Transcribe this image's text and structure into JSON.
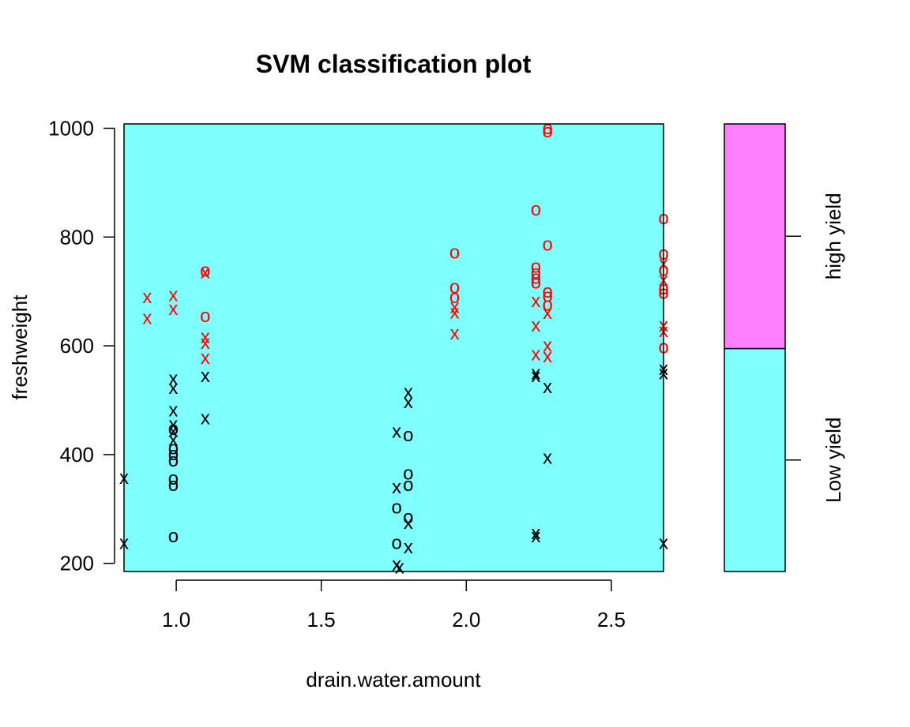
{
  "chart_data": {
    "type": "scatter",
    "title": "SVM classification plot",
    "xlabel": "drain.water.amount",
    "ylabel": "freshweight",
    "xlim": [
      0.82,
      2.68
    ],
    "ylim": [
      185,
      1008
    ],
    "xticks": [
      {
        "value": 1.0,
        "label": "1.0"
      },
      {
        "value": 1.5,
        "label": "1.5"
      },
      {
        "value": 2.0,
        "label": "2.0"
      },
      {
        "value": 2.5,
        "label": "2.5"
      }
    ],
    "yticks": [
      {
        "value": 200,
        "label": "200"
      },
      {
        "value": 400,
        "label": "400"
      },
      {
        "value": 600,
        "label": "600"
      },
      {
        "value": 800,
        "label": "800"
      },
      {
        "value": 1000,
        "label": "1000"
      }
    ],
    "classes": [
      {
        "name": "Low yield",
        "color": "#80FFFF",
        "range": [
          185,
          595
        ]
      },
      {
        "name": "high yield",
        "color": "#FF80FF",
        "range": [
          595,
          1008
        ]
      }
    ],
    "decision_region_color": "#80FFFF",
    "legend_placement": "right",
    "point_colors": {
      "high": "#FF0000",
      "low": "#000000"
    },
    "points": [
      {
        "x": 0.82,
        "y": 358,
        "m": "x",
        "c": "low"
      },
      {
        "x": 0.82,
        "y": 238,
        "m": "x",
        "c": "low"
      },
      {
        "x": 0.99,
        "y": 540,
        "m": "x",
        "c": "low"
      },
      {
        "x": 0.99,
        "y": 523,
        "m": "x",
        "c": "low"
      },
      {
        "x": 0.99,
        "y": 482,
        "m": "x",
        "c": "low"
      },
      {
        "x": 0.99,
        "y": 456,
        "m": "x",
        "c": "low"
      },
      {
        "x": 0.99,
        "y": 448,
        "m": "o",
        "c": "low"
      },
      {
        "x": 0.99,
        "y": 444,
        "m": "x",
        "c": "low"
      },
      {
        "x": 0.99,
        "y": 428,
        "m": "x",
        "c": "low"
      },
      {
        "x": 0.99,
        "y": 412,
        "m": "o",
        "c": "low"
      },
      {
        "x": 0.99,
        "y": 401,
        "m": "o",
        "c": "low"
      },
      {
        "x": 0.99,
        "y": 390,
        "m": "o",
        "c": "low"
      },
      {
        "x": 0.99,
        "y": 356,
        "m": "o",
        "c": "low"
      },
      {
        "x": 0.99,
        "y": 345,
        "m": "o",
        "c": "low"
      },
      {
        "x": 0.99,
        "y": 250,
        "m": "o",
        "c": "low"
      },
      {
        "x": 1.1,
        "y": 545,
        "m": "x",
        "c": "low"
      },
      {
        "x": 1.1,
        "y": 467,
        "m": "x",
        "c": "low"
      },
      {
        "x": 1.76,
        "y": 443,
        "m": "x",
        "c": "low"
      },
      {
        "x": 1.76,
        "y": 340,
        "m": "x",
        "c": "low"
      },
      {
        "x": 1.76,
        "y": 303,
        "m": "o",
        "c": "low"
      },
      {
        "x": 1.76,
        "y": 238,
        "m": "o",
        "c": "low"
      },
      {
        "x": 1.76,
        "y": 198,
        "m": "x",
        "c": "low"
      },
      {
        "x": 1.77,
        "y": 193,
        "m": "x",
        "c": "low"
      },
      {
        "x": 1.8,
        "y": 515,
        "m": "x",
        "c": "low"
      },
      {
        "x": 1.8,
        "y": 497,
        "m": "x",
        "c": "low"
      },
      {
        "x": 1.8,
        "y": 436,
        "m": "o",
        "c": "low"
      },
      {
        "x": 1.8,
        "y": 366,
        "m": "o",
        "c": "low"
      },
      {
        "x": 1.8,
        "y": 345,
        "m": "o",
        "c": "low"
      },
      {
        "x": 1.8,
        "y": 285,
        "m": "o",
        "c": "low"
      },
      {
        "x": 1.8,
        "y": 275,
        "m": "x",
        "c": "low"
      },
      {
        "x": 1.8,
        "y": 230,
        "m": "x",
        "c": "low"
      },
      {
        "x": 2.24,
        "y": 550,
        "m": "x",
        "c": "low"
      },
      {
        "x": 2.24,
        "y": 545,
        "m": "x",
        "c": "low"
      },
      {
        "x": 2.24,
        "y": 256,
        "m": "x",
        "c": "low"
      },
      {
        "x": 2.24,
        "y": 250,
        "m": "x",
        "c": "low"
      },
      {
        "x": 2.28,
        "y": 525,
        "m": "x",
        "c": "low"
      },
      {
        "x": 2.28,
        "y": 395,
        "m": "x",
        "c": "low"
      },
      {
        "x": 2.68,
        "y": 558,
        "m": "x",
        "c": "low"
      },
      {
        "x": 2.68,
        "y": 550,
        "m": "x",
        "c": "low"
      },
      {
        "x": 2.68,
        "y": 238,
        "m": "x",
        "c": "low"
      },
      {
        "x": 0.9,
        "y": 690,
        "m": "x",
        "c": "high"
      },
      {
        "x": 0.9,
        "y": 652,
        "m": "x",
        "c": "high"
      },
      {
        "x": 0.99,
        "y": 694,
        "m": "x",
        "c": "high"
      },
      {
        "x": 0.99,
        "y": 668,
        "m": "x",
        "c": "high"
      },
      {
        "x": 1.1,
        "y": 739,
        "m": "o",
        "c": "high"
      },
      {
        "x": 1.1,
        "y": 736,
        "m": "x",
        "c": "high"
      },
      {
        "x": 1.1,
        "y": 655,
        "m": "o",
        "c": "high"
      },
      {
        "x": 1.1,
        "y": 617,
        "m": "x",
        "c": "high"
      },
      {
        "x": 1.1,
        "y": 606,
        "m": "x",
        "c": "high"
      },
      {
        "x": 1.1,
        "y": 578,
        "m": "x",
        "c": "high"
      },
      {
        "x": 1.96,
        "y": 772,
        "m": "o",
        "c": "high"
      },
      {
        "x": 1.96,
        "y": 708,
        "m": "o",
        "c": "high"
      },
      {
        "x": 1.96,
        "y": 690,
        "m": "o",
        "c": "high"
      },
      {
        "x": 1.96,
        "y": 672,
        "m": "x",
        "c": "high"
      },
      {
        "x": 1.96,
        "y": 662,
        "m": "x",
        "c": "high"
      },
      {
        "x": 1.96,
        "y": 623,
        "m": "x",
        "c": "high"
      },
      {
        "x": 2.24,
        "y": 851,
        "m": "o",
        "c": "high"
      },
      {
        "x": 2.24,
        "y": 746,
        "m": "o",
        "c": "high"
      },
      {
        "x": 2.24,
        "y": 735,
        "m": "o",
        "c": "high"
      },
      {
        "x": 2.24,
        "y": 726,
        "m": "o",
        "c": "high"
      },
      {
        "x": 2.24,
        "y": 717,
        "m": "o",
        "c": "high"
      },
      {
        "x": 2.24,
        "y": 683,
        "m": "x",
        "c": "high"
      },
      {
        "x": 2.24,
        "y": 638,
        "m": "x",
        "c": "high"
      },
      {
        "x": 2.24,
        "y": 585,
        "m": "x",
        "c": "high"
      },
      {
        "x": 2.28,
        "y": 1001,
        "m": "o",
        "c": "high"
      },
      {
        "x": 2.28,
        "y": 995,
        "m": "o",
        "c": "high"
      },
      {
        "x": 2.28,
        "y": 787,
        "m": "o",
        "c": "high"
      },
      {
        "x": 2.28,
        "y": 700,
        "m": "o",
        "c": "high"
      },
      {
        "x": 2.28,
        "y": 692,
        "m": "o",
        "c": "high"
      },
      {
        "x": 2.28,
        "y": 676,
        "m": "o",
        "c": "high"
      },
      {
        "x": 2.28,
        "y": 661,
        "m": "x",
        "c": "high"
      },
      {
        "x": 2.28,
        "y": 601,
        "m": "x",
        "c": "high"
      },
      {
        "x": 2.28,
        "y": 581,
        "m": "x",
        "c": "high"
      },
      {
        "x": 2.68,
        "y": 835,
        "m": "o",
        "c": "high"
      },
      {
        "x": 2.68,
        "y": 770,
        "m": "o",
        "c": "high"
      },
      {
        "x": 2.68,
        "y": 752,
        "m": "x",
        "c": "high"
      },
      {
        "x": 2.68,
        "y": 740,
        "m": "o",
        "c": "high"
      },
      {
        "x": 2.68,
        "y": 722,
        "m": "x",
        "c": "high"
      },
      {
        "x": 2.68,
        "y": 706,
        "m": "o",
        "c": "high"
      },
      {
        "x": 2.68,
        "y": 698,
        "m": "o",
        "c": "high"
      },
      {
        "x": 2.68,
        "y": 638,
        "m": "x",
        "c": "high"
      },
      {
        "x": 2.68,
        "y": 628,
        "m": "x",
        "c": "high"
      },
      {
        "x": 2.68,
        "y": 598,
        "m": "o",
        "c": "high"
      }
    ]
  }
}
